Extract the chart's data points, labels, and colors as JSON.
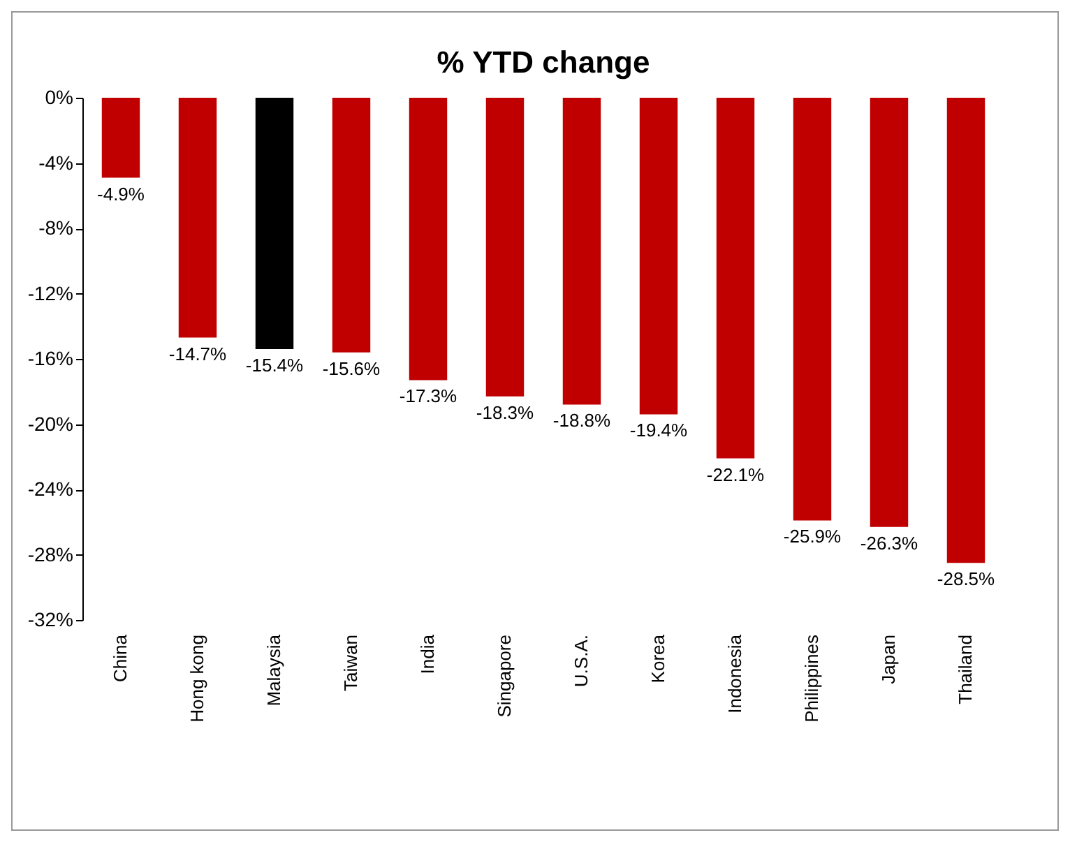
{
  "chart_data": {
    "type": "bar",
    "title": "%  YTD change",
    "categories": [
      "China",
      "Hong kong",
      "Malaysia",
      "Taiwan",
      "India",
      "Singapore",
      "U.S.A.",
      "Korea",
      "Indonesia",
      "Philippines",
      "Japan",
      "Thailand"
    ],
    "values": [
      -4.9,
      -14.7,
      -15.4,
      -15.6,
      -17.3,
      -18.3,
      -18.8,
      -19.4,
      -22.1,
      -25.9,
      -26.3,
      -28.5
    ],
    "colors": [
      "#c00000",
      "#c00000",
      "#000000",
      "#c00000",
      "#c00000",
      "#c00000",
      "#c00000",
      "#c00000",
      "#c00000",
      "#c00000",
      "#c00000",
      "#c00000"
    ],
    "value_labels": [
      "-4.9%",
      "-14.7%",
      "-15.4%",
      "-15.6%",
      "-17.3%",
      "-18.3%",
      "-18.8%",
      "-19.4%",
      "-22.1%",
      "-25.9%",
      "-26.3%",
      "-28.5%"
    ],
    "ylim": [
      -32,
      0
    ],
    "yticks": [
      {
        "value": 0,
        "label": "0%"
      },
      {
        "value": -4,
        "label": "-4%"
      },
      {
        "value": -8,
        "label": "-8%"
      },
      {
        "value": -12,
        "label": "-12%"
      },
      {
        "value": -16,
        "label": "-16%"
      },
      {
        "value": -20,
        "label": "-20%"
      },
      {
        "value": -24,
        "label": "-24%"
      },
      {
        "value": -28,
        "label": "-28%"
      },
      {
        "value": -32,
        "label": "-32%"
      }
    ],
    "grid": false
  }
}
